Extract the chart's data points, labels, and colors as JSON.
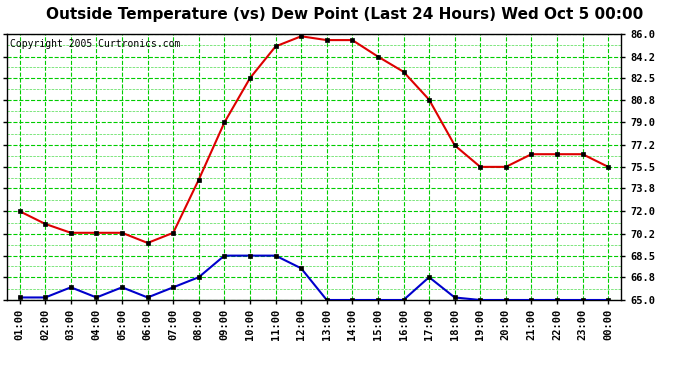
{
  "title": "Outside Temperature (vs) Dew Point (Last 24 Hours) Wed Oct 5 00:00",
  "copyright": "Copyright 2005 Curtronics.com",
  "x_labels": [
    "01:00",
    "02:00",
    "03:00",
    "04:00",
    "05:00",
    "06:00",
    "07:00",
    "08:00",
    "09:00",
    "10:00",
    "11:00",
    "12:00",
    "13:00",
    "14:00",
    "15:00",
    "16:00",
    "17:00",
    "18:00",
    "19:00",
    "20:00",
    "21:00",
    "22:00",
    "23:00",
    "00:00"
  ],
  "temp_data": [
    72.0,
    71.0,
    70.3,
    70.3,
    70.3,
    69.5,
    70.3,
    74.5,
    79.0,
    82.5,
    85.0,
    85.8,
    85.5,
    85.5,
    84.2,
    83.0,
    80.8,
    77.2,
    75.5,
    75.5,
    76.5,
    76.5,
    76.5,
    75.5
  ],
  "dew_data": [
    65.2,
    65.2,
    66.0,
    65.2,
    66.0,
    65.2,
    66.0,
    66.8,
    68.5,
    68.5,
    68.5,
    67.5,
    65.0,
    65.0,
    65.0,
    65.0,
    66.8,
    65.2,
    65.0,
    65.0,
    65.0,
    65.0,
    65.0,
    65.0
  ],
  "temp_color": "#dd0000",
  "dew_color": "#0000cc",
  "grid_color": "#00cc00",
  "bg_color": "#ffffff",
  "plot_bg_color": "#ffffff",
  "ylim": [
    65.0,
    86.0
  ],
  "yticks": [
    65.0,
    66.8,
    68.5,
    70.2,
    72.0,
    73.8,
    75.5,
    77.2,
    79.0,
    80.8,
    82.5,
    84.2,
    86.0
  ],
  "title_fontsize": 11,
  "axis_fontsize": 7.5,
  "copyright_fontsize": 7
}
